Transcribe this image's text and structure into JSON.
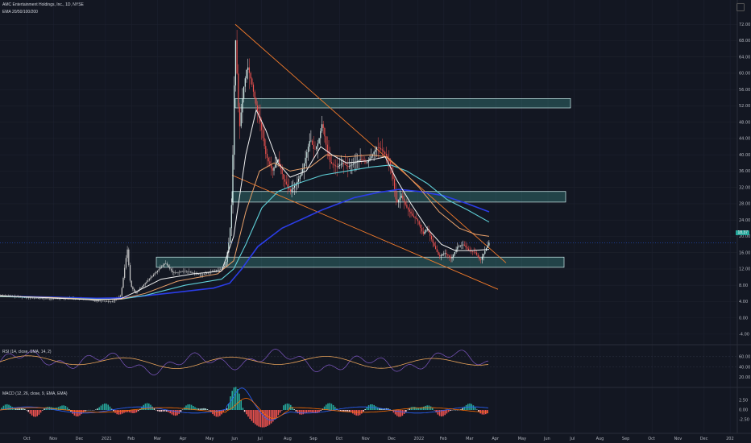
{
  "chart_data": [
    {
      "type": "candlestick",
      "title": "AMC Entertainment Holdings, Inc., 1D, NYSE",
      "indicator_label": "EMA 20/50/100/200",
      "ylim": [
        -6,
        76
      ],
      "y_ticks": [
        "72.00",
        "68.00",
        "64.00",
        "60.00",
        "56.00",
        "52.00",
        "48.00",
        "44.00",
        "40.00",
        "36.00",
        "32.00",
        "28.00",
        "24.00",
        "20.00",
        "16.00",
        "12.00",
        "8.00",
        "4.00",
        "0.00",
        "-4.00"
      ],
      "last_price": "18.37",
      "x_ticks": [
        "Oct",
        "Nov",
        "Dec",
        "2021",
        "Feb",
        "Mar",
        "Apr",
        "May",
        "Jun",
        "Jul",
        "Aug",
        "Sep",
        "Oct",
        "Nov",
        "Dec",
        "2022",
        "Feb",
        "Mar",
        "Apr",
        "May",
        "Jun",
        "Jul",
        "Aug",
        "Sep",
        "Oct",
        "Nov",
        "Dec",
        "202"
      ],
      "price_path": [
        [
          0,
          5.6
        ],
        [
          30,
          5.0
        ],
        [
          60,
          4.7
        ],
        [
          90,
          4.9
        ],
        [
          120,
          4.2
        ],
        [
          140,
          4.0
        ],
        [
          150,
          5.5
        ],
        [
          158,
          17.0
        ],
        [
          162,
          8.0
        ],
        [
          168,
          6.0
        ],
        [
          185,
          9.5
        ],
        [
          205,
          13.5
        ],
        [
          215,
          11.0
        ],
        [
          230,
          11.5
        ],
        [
          250,
          10.5
        ],
        [
          265,
          11.5
        ],
        [
          275,
          12.0
        ],
        [
          280,
          13.0
        ],
        [
          285,
          20.0
        ],
        [
          288,
          30.0
        ],
        [
          292,
          70.0
        ],
        [
          297,
          46.0
        ],
        [
          302,
          56.0
        ],
        [
          307,
          62.0
        ],
        [
          312,
          58.0
        ],
        [
          318,
          52.0
        ],
        [
          323,
          48.0
        ],
        [
          330,
          40.0
        ],
        [
          338,
          36.0
        ],
        [
          345,
          39.0
        ],
        [
          352,
          34.0
        ],
        [
          360,
          31.0
        ],
        [
          368,
          33.0
        ],
        [
          375,
          36.0
        ],
        [
          380,
          40.0
        ],
        [
          385,
          44.0
        ],
        [
          390,
          41.0
        ],
        [
          395,
          43.0
        ],
        [
          400,
          48.0
        ],
        [
          405,
          42.0
        ],
        [
          410,
          38.0
        ],
        [
          418,
          37.0
        ],
        [
          425,
          38.0
        ],
        [
          432,
          37.0
        ],
        [
          440,
          38.0
        ],
        [
          448,
          39.0
        ],
        [
          455,
          38.0
        ],
        [
          462,
          40.0
        ],
        [
          468,
          42.0
        ],
        [
          475,
          41.0
        ],
        [
          482,
          39.0
        ],
        [
          488,
          34.0
        ],
        [
          492,
          28.0
        ],
        [
          498,
          30.0
        ],
        [
          505,
          27.0
        ],
        [
          512,
          25.0
        ],
        [
          518,
          24.0
        ],
        [
          525,
          20.5
        ],
        [
          530,
          22.0
        ],
        [
          538,
          18.0
        ],
        [
          545,
          15.0
        ],
        [
          552,
          16.0
        ],
        [
          560,
          14.5
        ],
        [
          568,
          17.5
        ],
        [
          575,
          18.0
        ],
        [
          582,
          16.5
        ],
        [
          590,
          16.0
        ],
        [
          596,
          14.0
        ],
        [
          602,
          16.5
        ],
        [
          607,
          18.5
        ]
      ],
      "ema_white": [
        [
          0,
          5.4
        ],
        [
          60,
          4.9
        ],
        [
          120,
          4.4
        ],
        [
          150,
          4.7
        ],
        [
          170,
          6.5
        ],
        [
          200,
          9.5
        ],
        [
          240,
          10.8
        ],
        [
          275,
          11.5
        ],
        [
          290,
          20.0
        ],
        [
          305,
          40.0
        ],
        [
          318,
          51.0
        ],
        [
          330,
          46.0
        ],
        [
          345,
          38.0
        ],
        [
          360,
          34.5
        ],
        [
          380,
          36.0
        ],
        [
          398,
          42.0
        ],
        [
          412,
          40.0
        ],
        [
          430,
          38.0
        ],
        [
          455,
          38.5
        ],
        [
          478,
          39.5
        ],
        [
          492,
          34.0
        ],
        [
          510,
          28.0
        ],
        [
          530,
          22.0
        ],
        [
          548,
          18.0
        ],
        [
          565,
          16.5
        ],
        [
          585,
          16.5
        ],
        [
          607,
          16.8
        ]
      ],
      "ema_orange": [
        [
          0,
          5.3
        ],
        [
          60,
          5.0
        ],
        [
          120,
          4.5
        ],
        [
          150,
          4.6
        ],
        [
          180,
          6.0
        ],
        [
          220,
          9.0
        ],
        [
          270,
          10.8
        ],
        [
          290,
          14.0
        ],
        [
          305,
          26.0
        ],
        [
          322,
          36.0
        ],
        [
          340,
          38.0
        ],
        [
          360,
          36.0
        ],
        [
          385,
          37.0
        ],
        [
          405,
          40.0
        ],
        [
          430,
          39.5
        ],
        [
          460,
          40.0
        ],
        [
          480,
          39.5
        ],
        [
          500,
          36.0
        ],
        [
          520,
          32.0
        ],
        [
          545,
          26.0
        ],
        [
          570,
          22.0
        ],
        [
          590,
          20.5
        ],
        [
          607,
          20.0
        ]
      ],
      "ema_cyan": [
        [
          0,
          5.2
        ],
        [
          60,
          5.0
        ],
        [
          120,
          4.6
        ],
        [
          150,
          4.6
        ],
        [
          180,
          5.5
        ],
        [
          230,
          8.0
        ],
        [
          275,
          9.5
        ],
        [
          290,
          12.0
        ],
        [
          305,
          18.0
        ],
        [
          325,
          27.0
        ],
        [
          345,
          31.0
        ],
        [
          370,
          33.0
        ],
        [
          400,
          35.0
        ],
        [
          430,
          36.0
        ],
        [
          460,
          37.0
        ],
        [
          485,
          37.5
        ],
        [
          505,
          36.0
        ],
        [
          530,
          33.0
        ],
        [
          555,
          29.0
        ],
        [
          580,
          26.5
        ],
        [
          607,
          23.5
        ]
      ],
      "ema_blue": [
        [
          0,
          5.3
        ],
        [
          60,
          5.1
        ],
        [
          120,
          4.8
        ],
        [
          150,
          4.9
        ],
        [
          170,
          5.2
        ],
        [
          220,
          6.3
        ],
        [
          265,
          7.3
        ],
        [
          285,
          8.5
        ],
        [
          300,
          12.0
        ],
        [
          320,
          17.5
        ],
        [
          350,
          22.0
        ],
        [
          400,
          26.5
        ],
        [
          440,
          29.5
        ],
        [
          470,
          30.8
        ],
        [
          495,
          31.5
        ],
        [
          520,
          31.0
        ],
        [
          550,
          30.0
        ],
        [
          580,
          28.0
        ],
        [
          607,
          26.0
        ]
      ],
      "zones": [
        [
          51.5,
          53.8
        ],
        [
          28.4,
          31.0
        ],
        [
          12.4,
          14.9
        ]
      ],
      "trendlines": [
        {
          "x1": 292,
          "y1": 72.0,
          "x2": 628,
          "y2": 13.5
        },
        {
          "x1": 288,
          "y1": 35.0,
          "x2": 618,
          "y2": 7.0
        }
      ]
    },
    {
      "type": "line",
      "title": "RSI (14, close, SMA, 14, 2)",
      "y_ticks": [
        "60.00",
        "40.00",
        "20.00"
      ]
    },
    {
      "type": "bar",
      "title": "MACD (12, 26, close, 9, EMA, EMA)",
      "y_ticks": [
        "2.50",
        "0.00",
        "-2.50"
      ]
    }
  ]
}
